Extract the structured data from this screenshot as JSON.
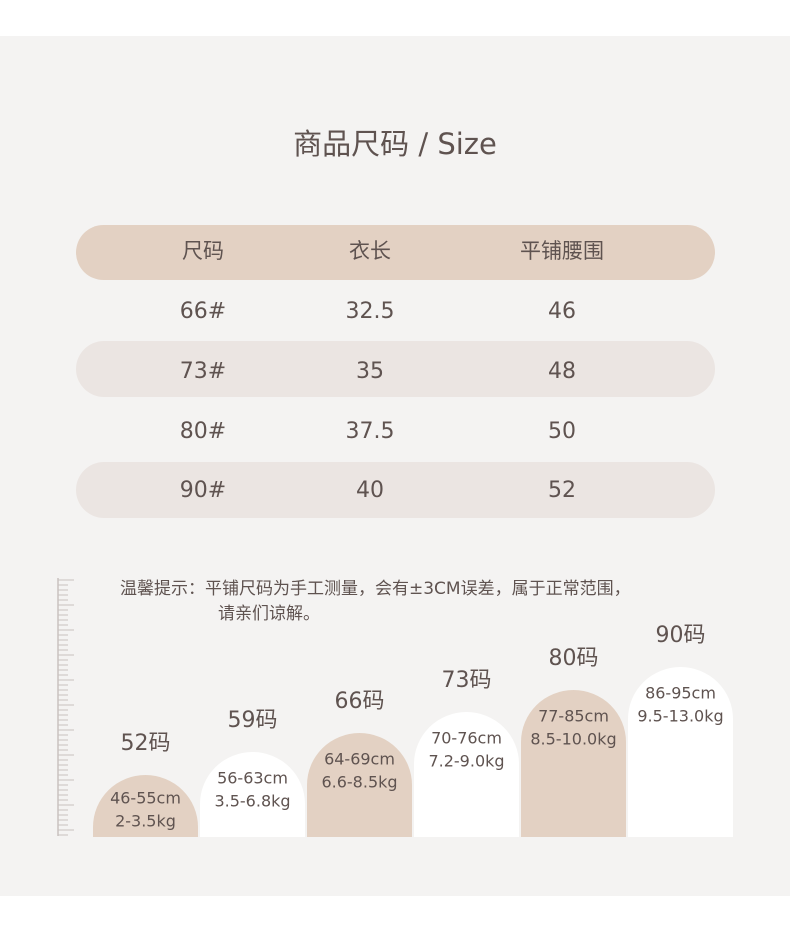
{
  "title": "商品尺码 / Size",
  "table": {
    "header": [
      "尺码",
      "衣长",
      "平铺腰围"
    ],
    "rows": [
      [
        "66#",
        "32.5",
        "46"
      ],
      [
        "73#",
        "35",
        "48"
      ],
      [
        "80#",
        "37.5",
        "50"
      ],
      [
        "90#",
        "40",
        "52"
      ]
    ]
  },
  "note": [
    "温馨提示：平铺尺码为手工测量，会有±3CM误差，属于正常范围，",
    "请亲们谅解。"
  ],
  "sizes": [
    {
      "label": "52码",
      "height": "46-55cm",
      "weight": "2-3.5kg"
    },
    {
      "label": "59码",
      "height": "56-63cm",
      "weight": "3.5-6.8kg"
    },
    {
      "label": "66码",
      "height": "64-69cm",
      "weight": "6.6-8.5kg"
    },
    {
      "label": "73码",
      "height": "70-76cm",
      "weight": "7.2-9.0kg"
    },
    {
      "label": "80码",
      "height": "77-85cm",
      "weight": "8.5-10.0kg"
    },
    {
      "label": "90码",
      "height": "86-95cm",
      "weight": "9.5-13.0kg"
    }
  ]
}
